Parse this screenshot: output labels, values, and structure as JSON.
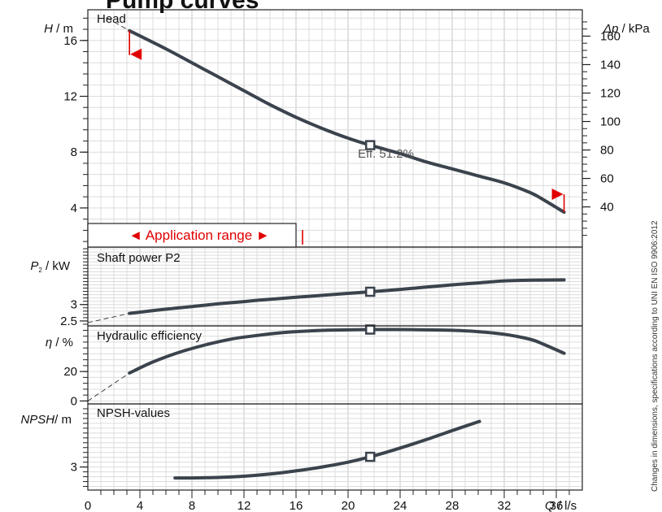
{
  "page_title": "Pump curves",
  "chart_data": {
    "type": "line",
    "x_axis": {
      "label_var": "Q",
      "label_unit": " / l/s",
      "range": [
        0,
        38
      ],
      "ticks": [
        "0",
        "4",
        "8",
        "12",
        "16",
        "20",
        "24",
        "28",
        "32",
        "36"
      ],
      "tick_values": [
        0,
        4,
        8,
        12,
        16,
        20,
        24,
        28,
        32,
        36
      ]
    },
    "panels": [
      {
        "id": "head",
        "title": "Head",
        "ylabel_var": "H",
        "ylabel_unit": " / m",
        "yrange": [
          1.2,
          18.2
        ],
        "yticks": [
          "4",
          "8",
          "12",
          "16"
        ],
        "ytick_values": [
          4,
          8,
          12,
          16
        ],
        "right_axis": {
          "label_var": "Δp",
          "label_unit": " / kPa",
          "ticks": [
            "40",
            "60",
            "80",
            "100",
            "120",
            "140",
            "160"
          ],
          "tick_values": [
            40,
            60,
            80,
            100,
            120,
            140,
            160
          ]
        },
        "series": [
          {
            "x": [
              3.2,
              6,
              8,
              10,
              12,
              14,
              16,
              18,
              20,
              21.7,
              24,
              26,
              28,
              30,
              32,
              34,
              35,
              36.6
            ],
            "y": [
              16.7,
              15.4,
              14.4,
              13.4,
              12.4,
              11.4,
              10.5,
              9.7,
              9.0,
              8.5,
              7.9,
              7.3,
              6.8,
              6.3,
              5.8,
              5.1,
              4.6,
              3.7
            ]
          }
        ],
        "extension": [
          [
            1.5,
            17.6
          ],
          [
            3.2,
            16.7
          ]
        ],
        "annotation": "Eff.  51.2%",
        "operating_point": [
          21.7,
          8.5
        ],
        "application_range_label": "◄ Application range ►",
        "application_range": [
          1.7,
          16.5
        ]
      },
      {
        "id": "power",
        "title": "Shaft power P2",
        "ylabel_var": "P",
        "ylabel_sub": "2",
        "ylabel_unit": " / kW",
        "yrange": [
          2.35,
          4.75
        ],
        "yticks": [
          "2.5",
          "3"
        ],
        "ytick_values": [
          2.5,
          3
        ],
        "series": [
          {
            "x": [
              3.2,
              6,
              8,
              10,
              12,
              14,
              16,
              18,
              20,
              21.7,
              24,
              26,
              28,
              30,
              32,
              34,
              36.6
            ],
            "y": [
              2.73,
              2.86,
              2.94,
              3.02,
              3.09,
              3.16,
              3.22,
              3.28,
              3.34,
              3.39,
              3.46,
              3.53,
              3.6,
              3.66,
              3.72,
              3.74,
              3.75
            ]
          }
        ],
        "extension": [
          [
            0,
            2.45
          ],
          [
            3.2,
            2.73
          ]
        ],
        "operating_point": [
          21.7,
          3.39
        ]
      },
      {
        "id": "efficiency",
        "title": "Hydraulic efficiency",
        "ylabel_var": "η",
        "ylabel_unit": " / %",
        "yrange": [
          -2,
          51
        ],
        "yticks": [
          "0",
          "20"
        ],
        "ytick_values": [
          0,
          20
        ],
        "series": [
          {
            "x": [
              3.2,
              5,
              7,
              9,
              11,
              13,
              15,
              17,
              19,
              21.7,
              24,
              26,
              28,
              30,
              32,
              34,
              35,
              36.6
            ],
            "y": [
              19,
              26.5,
              33,
              38,
              42,
              44.5,
              46.5,
              47.6,
              48.2,
              48.5,
              48.5,
              48.3,
              48.0,
              47.1,
              45.3,
              41.9,
              38.6,
              32.4
            ]
          }
        ],
        "extension": [
          [
            0,
            0
          ],
          [
            3.2,
            19
          ]
        ],
        "operating_point": [
          21.7,
          48.5
        ]
      },
      {
        "id": "npsh",
        "title": "NPSH-values",
        "ylabel_var": "NPSH",
        "ylabel_unit": "/ m",
        "yrange": [
          2.05,
          5.6
        ],
        "yticks": [
          "3"
        ],
        "ytick_values": [
          3
        ],
        "series": [
          {
            "x": [
              6.7,
              8,
              10,
              12,
              14,
              16,
              18,
              20,
              21.7,
              24,
              26,
              28,
              30.1
            ],
            "y": [
              2.55,
              2.55,
              2.57,
              2.62,
              2.71,
              2.84,
              3.0,
              3.2,
              3.42,
              3.78,
              4.13,
              4.5,
              4.88
            ]
          }
        ],
        "operating_point": [
          21.7,
          3.42
        ]
      }
    ],
    "side_note": "Changes in dimensions, specifications according to UNI EN ISO 9906:2012"
  }
}
